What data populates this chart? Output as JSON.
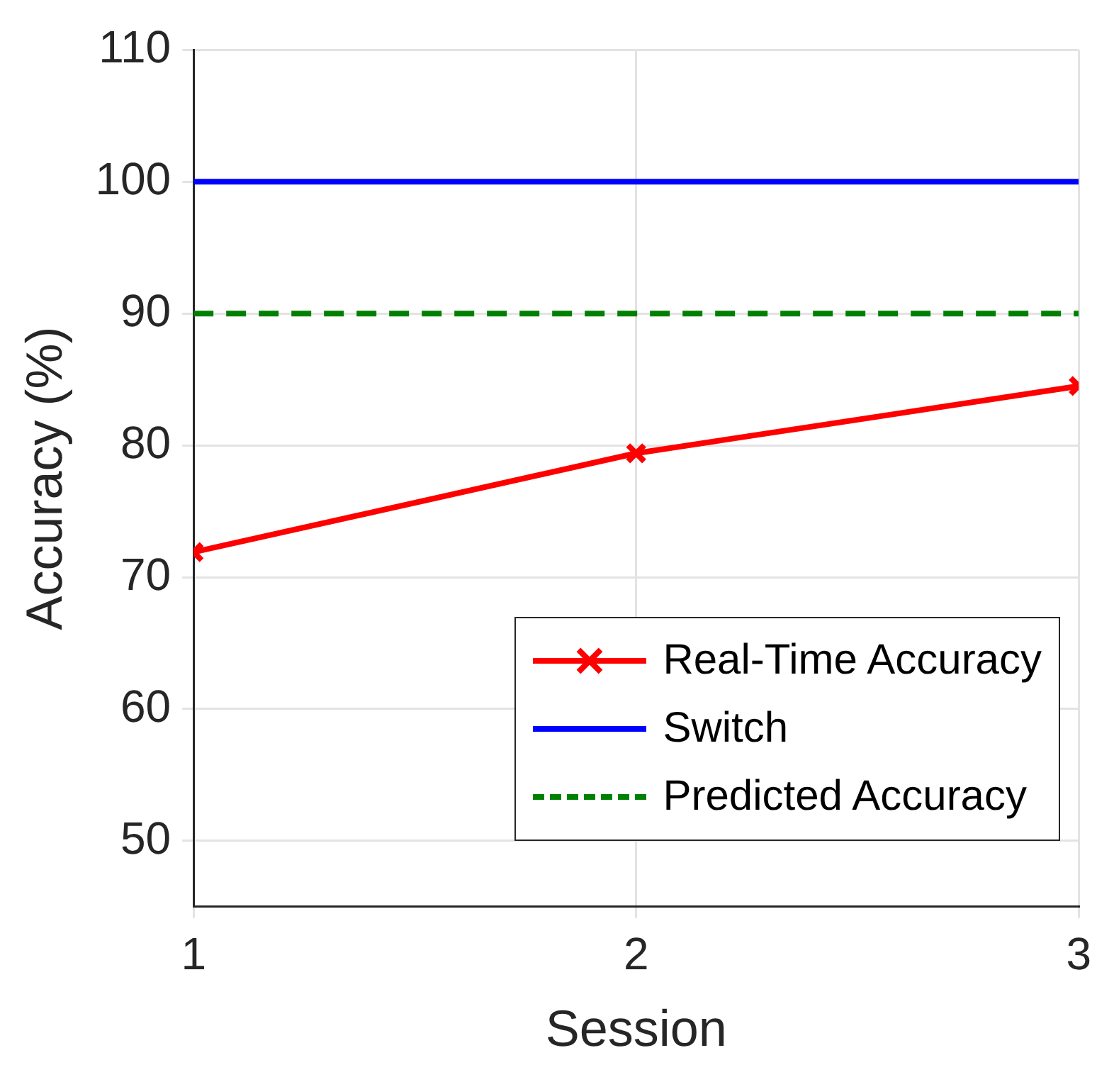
{
  "chart_data": {
    "type": "line",
    "xlabel": "Session",
    "ylabel": "Accuracy (%)",
    "x": [
      1,
      2,
      3
    ],
    "xlim": [
      1,
      3
    ],
    "xticks": [
      1,
      2,
      3
    ],
    "ylim": [
      45,
      110
    ],
    "yticks": [
      50,
      60,
      70,
      80,
      90,
      100,
      110
    ],
    "grid": true,
    "legend": "bottom right",
    "series": [
      {
        "name": "Real-Time Accuracy",
        "color": "#ff0000",
        "values": [
          71.9,
          79.4,
          84.5
        ],
        "marker": "cross",
        "line_style": "solid"
      },
      {
        "name": "Switch",
        "color": "#0000ff",
        "values": [
          100,
          100,
          100
        ],
        "marker": "none",
        "line_style": "solid"
      },
      {
        "name": "Predicted Accuracy",
        "color": "#008000",
        "values": [
          90,
          90,
          90
        ],
        "marker": "none",
        "line_style": "dashed"
      }
    ]
  }
}
